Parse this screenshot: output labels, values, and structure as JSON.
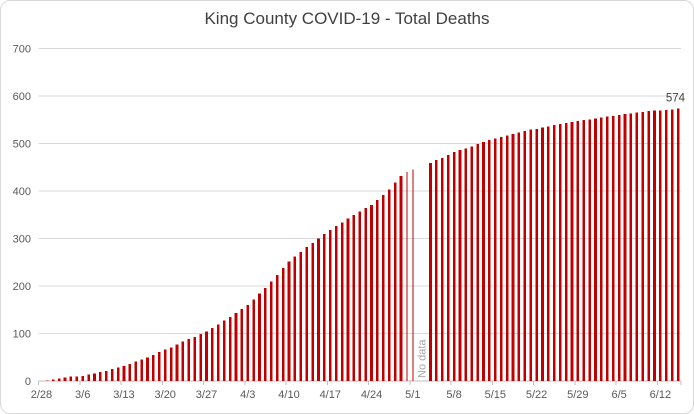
{
  "window": {
    "background": "#FFFFFF",
    "border_color": "#D9D9D9"
  },
  "chart_data": {
    "type": "bar",
    "title": "King County COVID-19 - Total Deaths",
    "xlabel": "",
    "ylabel": "",
    "ylim": [
      0,
      700
    ],
    "y_ticks": [
      0,
      100,
      200,
      300,
      400,
      500,
      600,
      700
    ],
    "grid": "horizontal",
    "legend": "none",
    "x_tick_interval": 7,
    "x_tick_labels": [
      "2/28",
      "3/6",
      "3/13",
      "3/20",
      "3/27",
      "4/3",
      "4/10",
      "4/17",
      "4/24",
      "5/1",
      "5/8",
      "5/15",
      "5/22",
      "5/29",
      "6/5",
      "6/12"
    ],
    "x": [
      "2/28",
      "2/29",
      "3/1",
      "3/2",
      "3/3",
      "3/4",
      "3/5",
      "3/6",
      "3/7",
      "3/8",
      "3/9",
      "3/10",
      "3/11",
      "3/12",
      "3/13",
      "3/14",
      "3/15",
      "3/16",
      "3/17",
      "3/18",
      "3/19",
      "3/20",
      "3/21",
      "3/22",
      "3/23",
      "3/24",
      "3/25",
      "3/26",
      "3/27",
      "3/28",
      "3/29",
      "3/30",
      "3/31",
      "4/1",
      "4/2",
      "4/3",
      "4/4",
      "4/5",
      "4/6",
      "4/7",
      "4/8",
      "4/9",
      "4/10",
      "4/11",
      "4/12",
      "4/13",
      "4/14",
      "4/15",
      "4/16",
      "4/17",
      "4/18",
      "4/19",
      "4/20",
      "4/21",
      "4/22",
      "4/23",
      "4/24",
      "4/25",
      "4/26",
      "4/27",
      "4/28",
      "4/29",
      "4/30",
      "5/1",
      "5/2",
      "5/3",
      "5/4",
      "5/5",
      "5/6",
      "5/7",
      "5/8",
      "5/9",
      "5/10",
      "5/11",
      "5/12",
      "5/13",
      "5/14",
      "5/15",
      "5/16",
      "5/17",
      "5/18",
      "5/19",
      "5/20",
      "5/21",
      "5/22",
      "5/23",
      "5/24",
      "5/25",
      "5/26",
      "5/27",
      "5/28",
      "5/29",
      "5/30",
      "5/31",
      "6/1",
      "6/2",
      "6/3",
      "6/4",
      "6/5",
      "6/6",
      "6/7",
      "6/8",
      "6/9",
      "6/10",
      "6/11",
      "6/12",
      "6/13",
      "6/14",
      "6/15"
    ],
    "values": [
      0,
      1,
      3,
      5,
      7,
      9,
      10,
      11,
      14,
      16,
      19,
      21,
      25,
      28,
      32,
      36,
      41,
      45,
      50,
      55,
      61,
      66,
      71,
      77,
      83,
      88,
      93,
      99,
      104,
      112,
      119,
      127,
      135,
      143,
      152,
      160,
      172,
      184,
      196,
      209,
      223,
      238,
      252,
      262,
      272,
      282,
      291,
      300,
      309,
      318,
      326,
      334,
      342,
      350,
      357,
      364,
      371,
      381,
      392,
      403,
      418,
      432,
      440,
      445,
      null,
      null,
      459,
      465,
      470,
      476,
      482,
      486,
      490,
      494,
      499,
      503,
      507,
      511,
      514,
      517,
      520,
      523,
      526,
      529,
      531,
      534,
      536,
      539,
      541,
      543,
      545,
      547,
      549,
      551,
      553,
      555,
      557,
      558,
      560,
      562,
      563,
      565,
      566,
      568,
      569,
      570,
      571,
      572,
      574
    ],
    "thin_bars": [
      "4/30",
      "5/1"
    ],
    "no_data": {
      "label": "No data",
      "dates": [
        "5/2",
        "5/3"
      ]
    },
    "annotation": {
      "text": "574",
      "date": "6/15",
      "value": 574
    },
    "colors": {
      "bar": "#C00000",
      "gridline": "#D9D9D9",
      "axis_line": "#BFBFBF",
      "tick_label": "#595959",
      "title": "#404040",
      "annotation": "#404040",
      "no_data_text": "#A6A6A6"
    }
  }
}
